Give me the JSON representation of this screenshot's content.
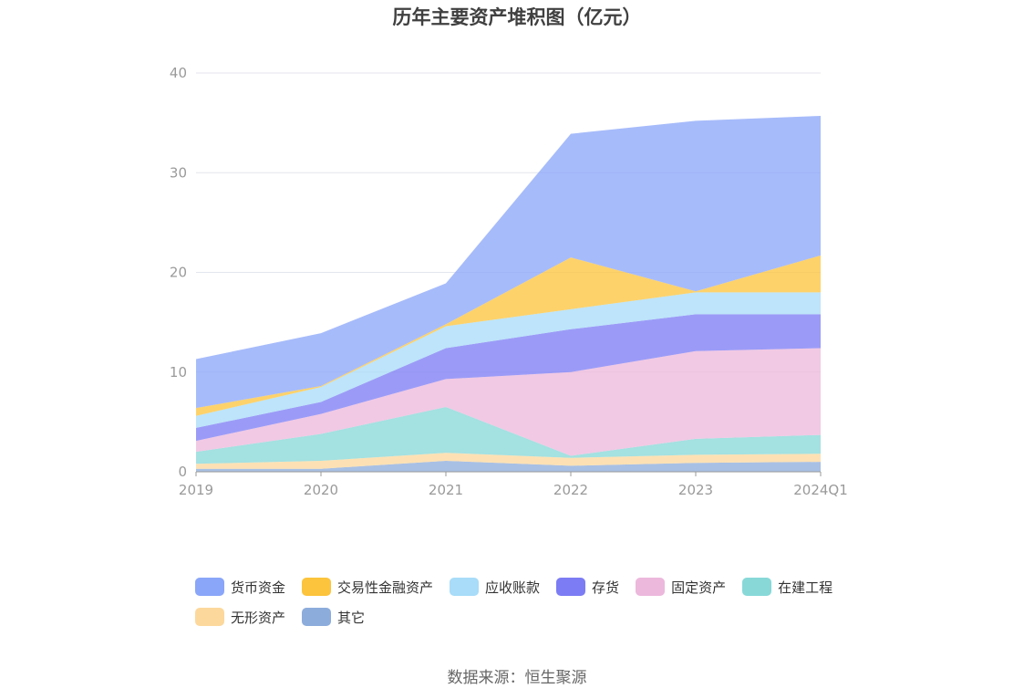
{
  "chart_data": {
    "type": "area",
    "stacked": true,
    "title": "历年主要资产堆积图（亿元）",
    "categories": [
      "2019",
      "2020",
      "2021",
      "2022",
      "2023",
      "2024Q1"
    ],
    "ylim": [
      0,
      40
    ],
    "yticks": [
      0,
      10,
      20,
      30,
      40
    ],
    "grid": true,
    "legend_position": "bottom",
    "series": [
      {
        "name": "货币资金",
        "color": "#8aa6f8",
        "values": [
          4.9,
          5.3,
          4.1,
          12.4,
          17.1,
          14.0
        ]
      },
      {
        "name": "交易性金融资产",
        "color": "#fcc43c",
        "values": [
          0.8,
          0.1,
          0.2,
          5.2,
          0.1,
          3.7
        ]
      },
      {
        "name": "应收账款",
        "color": "#a8dcf8",
        "values": [
          1.2,
          1.5,
          2.2,
          2.0,
          2.2,
          2.2
        ]
      },
      {
        "name": "存货",
        "color": "#7c7cf4",
        "values": [
          1.3,
          1.2,
          3.1,
          4.3,
          3.7,
          3.4
        ]
      },
      {
        "name": "固定资产",
        "color": "#ecb8dc",
        "values": [
          1.1,
          2.0,
          2.8,
          8.4,
          8.8,
          8.7
        ]
      },
      {
        "name": "在建工程",
        "color": "#88d8d8",
        "values": [
          1.2,
          2.7,
          4.6,
          0.2,
          1.6,
          1.9
        ]
      },
      {
        "name": "无形资产",
        "color": "#fcd89c",
        "values": [
          0.5,
          0.8,
          0.8,
          0.8,
          0.8,
          0.8
        ]
      },
      {
        "name": "其它",
        "color": "#8cacdc",
        "values": [
          0.3,
          0.3,
          1.1,
          0.6,
          0.9,
          1.0
        ]
      }
    ]
  },
  "source": "数据来源：恒生聚源"
}
